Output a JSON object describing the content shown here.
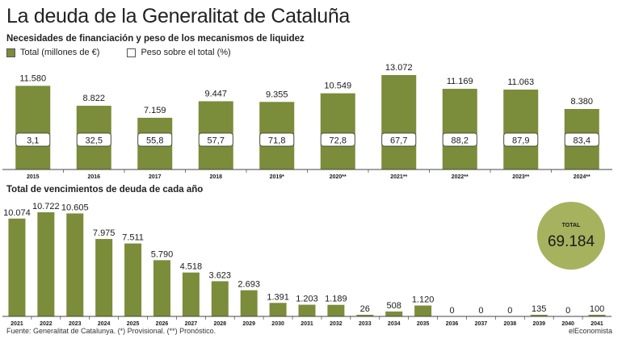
{
  "title": "La deuda de la Generalitat de Cataluña",
  "colors": {
    "bar": "#7b8c3a",
    "total_circle": "#a6b25e",
    "axis": "#444444"
  },
  "legend": [
    {
      "label": "Total (millones de €)",
      "swatch": "#7b8c3a"
    },
    {
      "label": "Peso sobre el total (%)",
      "swatch": "#ffffff"
    }
  ],
  "chart_data": [
    {
      "type": "bar",
      "title": "Necesidades de financiación y peso de los mecanismos de liquidez",
      "categories": [
        "2015",
        "2016",
        "2017",
        "2018",
        "2019*",
        "2020**",
        "2021**",
        "2022**",
        "2023**",
        "2024**"
      ],
      "series": [
        {
          "name": "Total (millones de €)",
          "values": [
            11580,
            8822,
            7159,
            9447,
            9355,
            10549,
            13072,
            11169,
            11063,
            8380
          ],
          "labels": [
            "11.580",
            "8.822",
            "7.159",
            "9.447",
            "9.355",
            "10.549",
            "13.072",
            "11.169",
            "11.063",
            "8.380"
          ]
        },
        {
          "name": "Peso sobre el total (%)",
          "values": [
            3.1,
            32.5,
            55.8,
            57.7,
            71.8,
            72.8,
            67.7,
            88.2,
            87.9,
            83.4
          ],
          "labels": [
            "3,1",
            "32,5",
            "55,8",
            "57,7",
            "71,8",
            "72,8",
            "67,7",
            "88,2",
            "87,9",
            "83,4"
          ]
        }
      ],
      "ylim": [
        0,
        13072
      ]
    },
    {
      "type": "bar",
      "title": "Total de vencimientos de deuda de cada año",
      "categories": [
        "2021",
        "2022",
        "2023",
        "2024",
        "2025",
        "2026",
        "2027",
        "2028",
        "2029",
        "2030",
        "2031",
        "2032",
        "2033",
        "2034",
        "2035",
        "2036",
        "2037",
        "2038",
        "2039",
        "2040",
        "2041"
      ],
      "values": [
        10074,
        10722,
        10605,
        7975,
        7511,
        5790,
        4518,
        3623,
        2693,
        1391,
        1203,
        1189,
        26,
        508,
        1120,
        0,
        0,
        0,
        135,
        0,
        100
      ],
      "labels": [
        "10.074",
        "10.722",
        "10.605",
        "7.975",
        "7.511",
        "5.790",
        "4.518",
        "3.623",
        "2.693",
        "1.391",
        "1.203",
        "1.189",
        "26",
        "508",
        "1.120",
        "0",
        "0",
        "0",
        "135",
        "0",
        "100"
      ],
      "ylim": [
        0,
        10722
      ],
      "total": {
        "label": "TOTAL",
        "value": "69.184"
      }
    }
  ],
  "footer": {
    "source": "Fuente: Generalitat de Catalunya. (*) Provisional. (**) Pronóstico.",
    "brand": "elEconomista"
  }
}
